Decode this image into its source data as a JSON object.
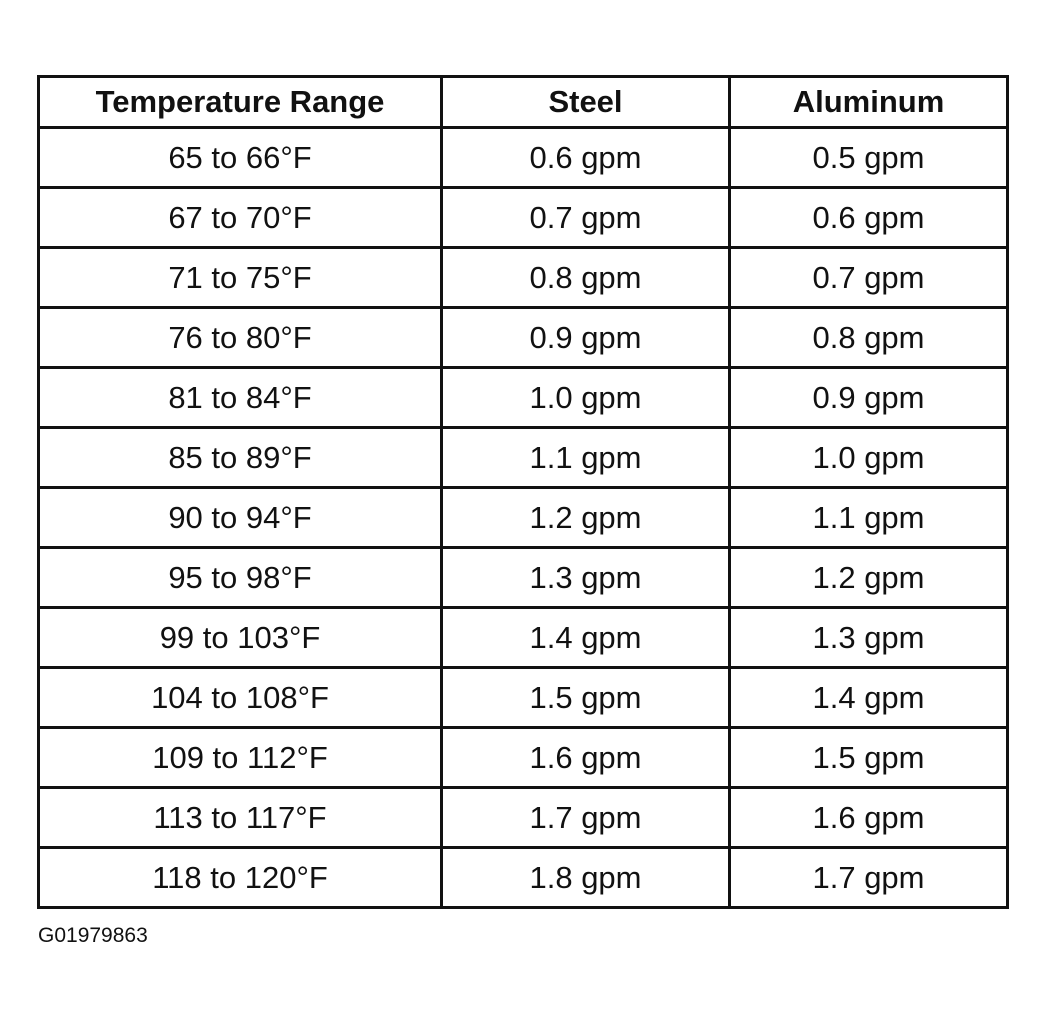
{
  "table": {
    "header": [
      "Temperature Range",
      "Steel",
      "Aluminum"
    ],
    "rows": [
      [
        "65 to 66°F",
        "0.6 gpm",
        "0.5 gpm"
      ],
      [
        "67 to 70°F",
        "0.7 gpm",
        "0.6 gpm"
      ],
      [
        "71 to 75°F",
        "0.8 gpm",
        "0.7 gpm"
      ],
      [
        "76 to 80°F",
        "0.9 gpm",
        "0.8 gpm"
      ],
      [
        "81 to 84°F",
        "1.0 gpm",
        "0.9 gpm"
      ],
      [
        "85 to 89°F",
        "1.1 gpm",
        "1.0 gpm"
      ],
      [
        "90 to 94°F",
        "1.2 gpm",
        "1.1 gpm"
      ],
      [
        "95 to 98°F",
        "1.3 gpm",
        "1.2 gpm"
      ],
      [
        "99 to 103°F",
        "1.4 gpm",
        "1.3 gpm"
      ],
      [
        "104 to 108°F",
        "1.5 gpm",
        "1.4 gpm"
      ],
      [
        "109 to 112°F",
        "1.6 gpm",
        "1.5 gpm"
      ],
      [
        "113 to 117°F",
        "1.7 gpm",
        "1.6 gpm"
      ],
      [
        "118 to 120°F",
        "1.8 gpm",
        "1.7 gpm"
      ]
    ]
  },
  "figure_id": "G01979863"
}
